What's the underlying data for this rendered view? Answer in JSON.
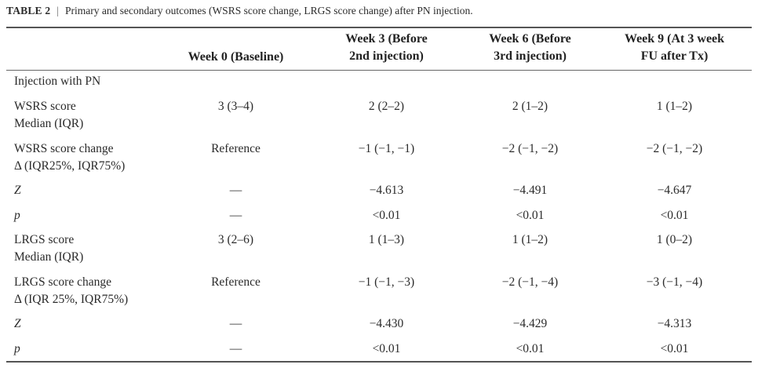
{
  "caption": {
    "label": "TABLE 2",
    "separator": "|",
    "text": "Primary and secondary outcomes (WSRS score change, LRGS score change) after PN injection."
  },
  "headers": {
    "week0": "Week 0 (Baseline)",
    "week3": {
      "line1": "Week 3 (Before",
      "line2": "2nd injection)"
    },
    "week6": {
      "line1": "Week 6 (Before",
      "line2": "3rd injection)"
    },
    "week9": {
      "line1": "Week 9 (At 3 week",
      "line2": "FU after Tx)"
    }
  },
  "rows": {
    "section": {
      "label": "Injection with PN"
    },
    "wsrs_score": {
      "line1": "WSRS score",
      "line2": "Median (IQR)",
      "v0": "3 (3–4)",
      "v3": "2 (2–2)",
      "v6": "2 (1–2)",
      "v9": "1 (1–2)"
    },
    "wsrs_change": {
      "line1": "WSRS score change",
      "line2": "Δ (IQR25%, IQR75%)",
      "v0": "Reference",
      "v3": "−1 (−1, −1)",
      "v6": "−2 (−1, −2)",
      "v9": "−2 (−1, −2)"
    },
    "wsrs_z": {
      "label": "Z",
      "v0": "—",
      "v3": "−4.613",
      "v6": "−4.491",
      "v9": "−4.647"
    },
    "wsrs_p": {
      "label": "p",
      "v0": "—",
      "v3": "<0.01",
      "v6": "<0.01",
      "v9": "<0.01"
    },
    "lrgs_score": {
      "line1": "LRGS score",
      "line2": "Median (IQR)",
      "v0": "3 (2–6)",
      "v3": "1 (1–3)",
      "v6": "1 (1–2)",
      "v9": "1 (0–2)"
    },
    "lrgs_change": {
      "line1": "LRGS score change",
      "line2": "Δ (IQR 25%, IQR75%)",
      "v0": "Reference",
      "v3": "−1 (−1, −3)",
      "v6": "−2 (−1, −4)",
      "v9": "−3 (−1, −4)"
    },
    "lrgs_z": {
      "label": "Z",
      "v0": "—",
      "v3": "−4.430",
      "v6": "−4.429",
      "v9": "−4.313"
    },
    "lrgs_p": {
      "label": "p",
      "v0": "—",
      "v3": "<0.01",
      "v6": "<0.01",
      "v9": "<0.01"
    }
  }
}
